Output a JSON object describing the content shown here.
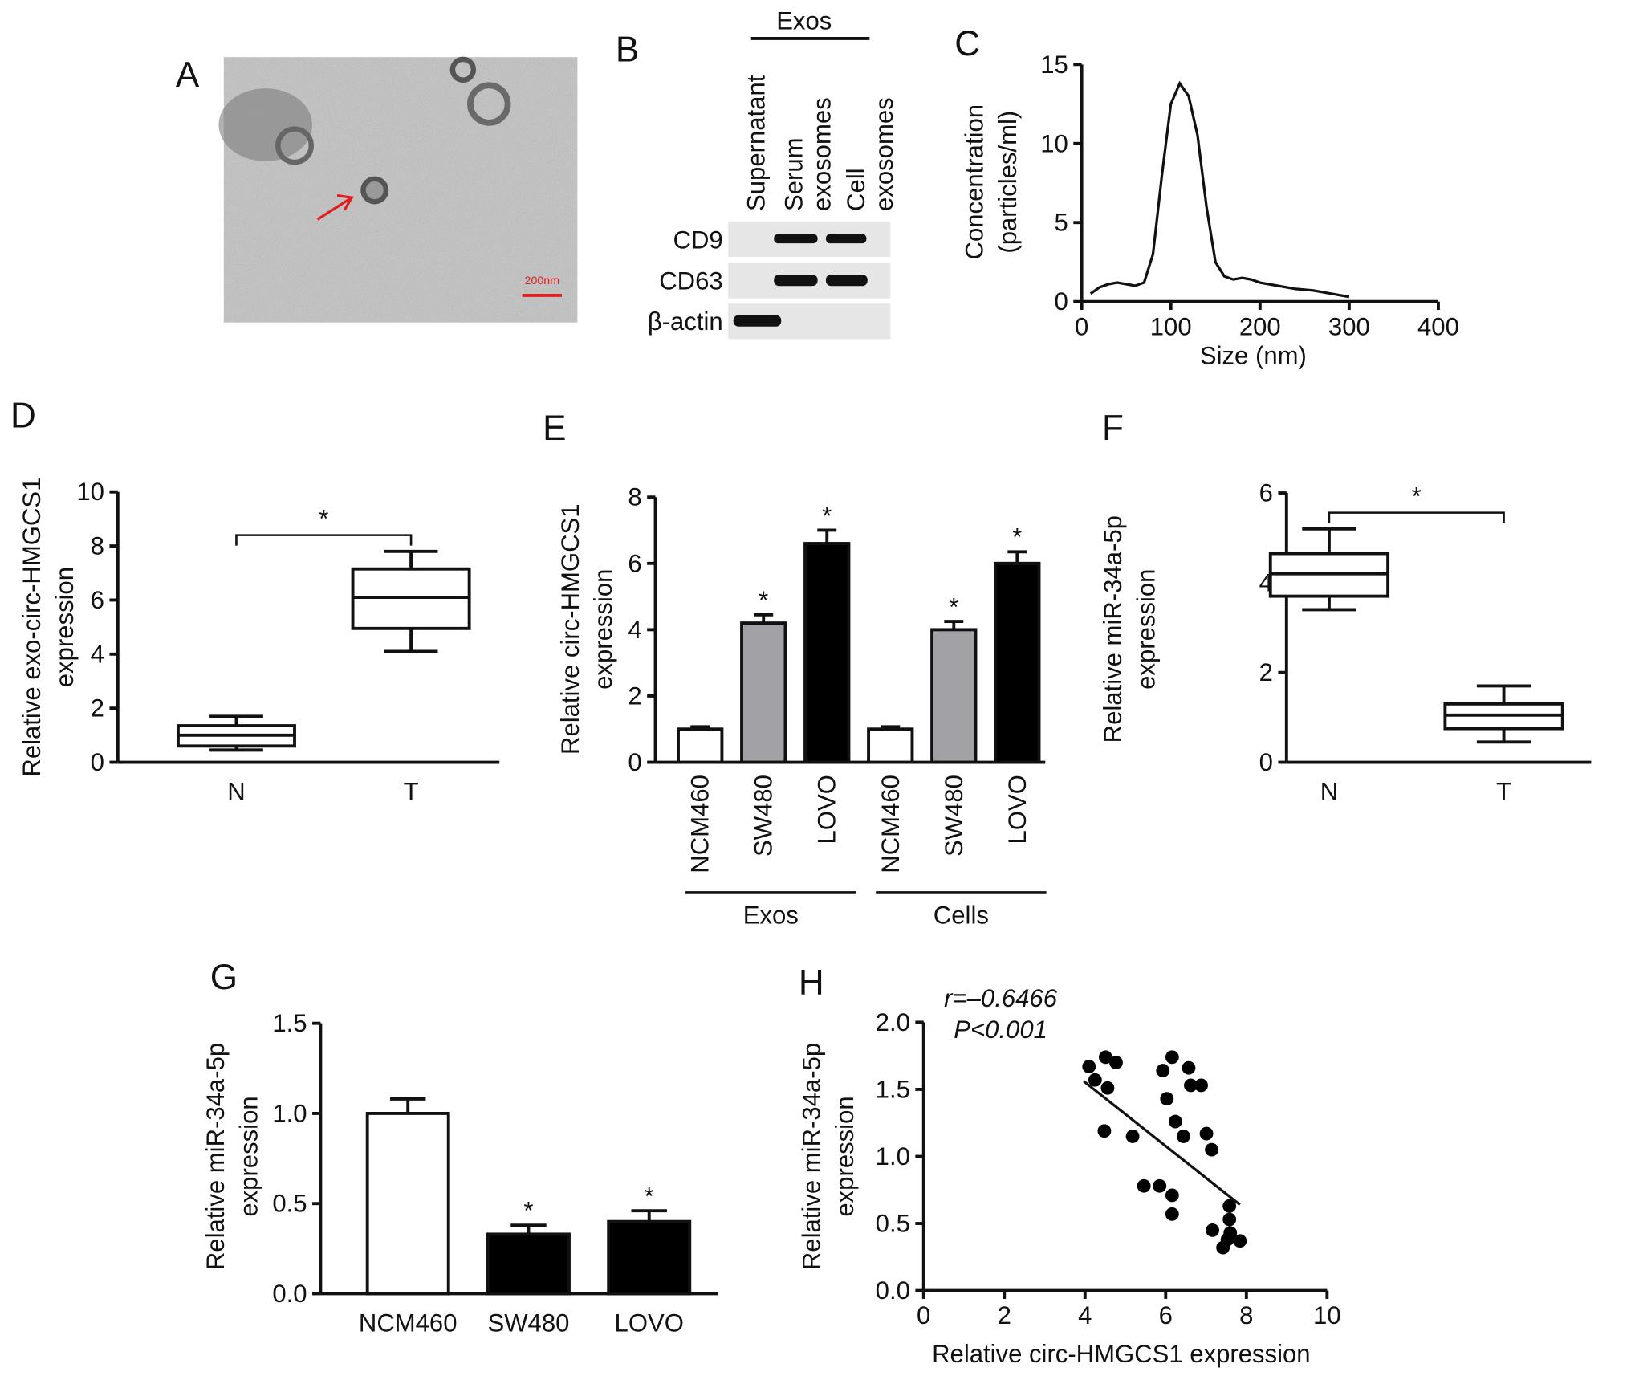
{
  "micrograph": {
    "label": "A",
    "scale_label": "200nm"
  },
  "blot": {
    "label": "B",
    "header": "Exos",
    "lanes": [
      [
        "Supernatant"
      ],
      [
        "Serum",
        "exosomes"
      ],
      [
        "Cell",
        "exosomes"
      ]
    ],
    "rows": [
      "CD9",
      "CD63",
      "β-actin"
    ]
  },
  "chart_data": [
    {
      "type": "line",
      "label": "C",
      "ylabel": [
        "Concentration",
        "(particles/ml)"
      ],
      "xlabel": "Size (nm)",
      "x": [
        10,
        20,
        30,
        40,
        50,
        60,
        70,
        80,
        90,
        100,
        110,
        120,
        130,
        140,
        150,
        160,
        170,
        180,
        190,
        200,
        220,
        240,
        260,
        280,
        300
      ],
      "values": [
        0.5,
        0.9,
        1.1,
        1.2,
        1.1,
        1.0,
        1.2,
        3,
        8,
        12.5,
        13.8,
        13,
        10.5,
        6,
        2.5,
        1.6,
        1.4,
        1.5,
        1.4,
        1.2,
        1.0,
        0.8,
        0.7,
        0.5,
        0.3
      ],
      "color": "#111111",
      "xlim": [
        0,
        400
      ],
      "xticks": [
        0,
        100,
        200,
        300,
        400
      ],
      "ylim": [
        0,
        15
      ],
      "yticks": [
        0,
        5,
        10,
        15
      ]
    },
    {
      "type": "box",
      "label": "D",
      "ylabel": [
        "Relative exo-circ-HMGCS1",
        "expression"
      ],
      "categories": [
        "N",
        "T"
      ],
      "whisker_low": [
        0.45,
        4.1
      ],
      "q1": [
        0.6,
        4.95
      ],
      "median": [
        1.0,
        6.1
      ],
      "q3": [
        1.35,
        7.15
      ],
      "whisker_high": [
        1.7,
        7.8
      ],
      "significance": "*",
      "ylim": [
        0,
        10
      ],
      "yticks": [
        0,
        2,
        4,
        6,
        8,
        10
      ]
    },
    {
      "type": "bar",
      "label": "E",
      "ylabel": [
        "Relative circ-HMGCS1",
        "expression"
      ],
      "categories": [
        "NCM460",
        "SW480",
        "LOVO",
        "NCM460",
        "SW480",
        "LOVO"
      ],
      "groups": [
        "Exos",
        "Cells"
      ],
      "values": [
        1.0,
        4.2,
        6.6,
        1.0,
        4.0,
        6.0
      ],
      "errors": [
        0.07,
        0.25,
        0.4,
        0.07,
        0.25,
        0.35
      ],
      "colors": [
        "#ffffff",
        "#a2a2a6",
        "#000000",
        "#ffffff",
        "#a2a2a6",
        "#000000"
      ],
      "significance": [
        null,
        "*",
        "*",
        null,
        "*",
        "*"
      ],
      "ylim": [
        0,
        8
      ],
      "yticks": [
        0,
        2,
        4,
        6,
        8
      ]
    },
    {
      "type": "box",
      "label": "F",
      "ylabel": [
        "Relative miR-34a-5p",
        "expression"
      ],
      "categories": [
        "N",
        "T"
      ],
      "whisker_low": [
        3.4,
        0.45
      ],
      "q1": [
        3.7,
        0.75
      ],
      "median": [
        4.2,
        1.05
      ],
      "q3": [
        4.65,
        1.3
      ],
      "whisker_high": [
        5.2,
        1.7
      ],
      "significance": "*",
      "ylim": [
        0,
        6
      ],
      "yticks": [
        0,
        2,
        4,
        6
      ]
    },
    {
      "type": "bar",
      "label": "G",
      "ylabel": [
        "Relative miR-34a-5p",
        "expression"
      ],
      "categories": [
        "NCM460",
        "SW480",
        "LOVO"
      ],
      "values": [
        1.0,
        0.33,
        0.4
      ],
      "errors": [
        0.08,
        0.05,
        0.06
      ],
      "colors": [
        "#ffffff",
        "#000000",
        "#000000"
      ],
      "significance": [
        null,
        "*",
        "*"
      ],
      "ylim": [
        0,
        1.5
      ],
      "yticks": [
        {
          "value": 0,
          "label": "0.0"
        },
        {
          "value": 0.5,
          "label": "0.5"
        },
        {
          "value": 1,
          "label": "1.0"
        },
        {
          "value": 1.5,
          "label": "1.5"
        }
      ]
    },
    {
      "type": "scatter",
      "label": "H",
      "ylabel": [
        "Relative miR-34a-5p",
        "expression"
      ],
      "xlabel": "Relative circ-HMGCS1 expression",
      "annotations": [
        "r=–0.6466",
        "P<0.001"
      ],
      "x": [
        4.1,
        4.25,
        4.56,
        4.51,
        4.77,
        4.48,
        5.18,
        5.46,
        5.85,
        6.16,
        6.16,
        5.93,
        6.16,
        6.03,
        6.24,
        6.44,
        6.57,
        6.62,
        6.88,
        7.01,
        7.14,
        7.58,
        7.58,
        7.6,
        7.16,
        7.53,
        7.42,
        7.84
      ],
      "values": [
        1.67,
        1.57,
        1.51,
        1.74,
        1.7,
        1.19,
        1.15,
        0.78,
        0.78,
        0.71,
        0.57,
        1.64,
        1.74,
        1.43,
        1.26,
        1.15,
        1.66,
        1.53,
        1.53,
        1.17,
        1.05,
        0.63,
        0.53,
        0.43,
        0.45,
        0.38,
        0.32,
        0.37
      ],
      "trend_x": [
        3.97,
        7.84
      ],
      "trend_y": [
        1.56,
        0.64
      ],
      "color": "#000000",
      "xlim": [
        0,
        10
      ],
      "xticks": [
        0,
        2,
        4,
        6,
        8,
        10
      ],
      "ylim": [
        0,
        2
      ],
      "yticks": [
        {
          "value": 0,
          "label": "0.0"
        },
        {
          "value": 0.5,
          "label": "0.5"
        },
        {
          "value": 1,
          "label": "1.0"
        },
        {
          "value": 1.5,
          "label": "1.5"
        },
        {
          "value": 2,
          "label": "2.0"
        }
      ]
    }
  ]
}
